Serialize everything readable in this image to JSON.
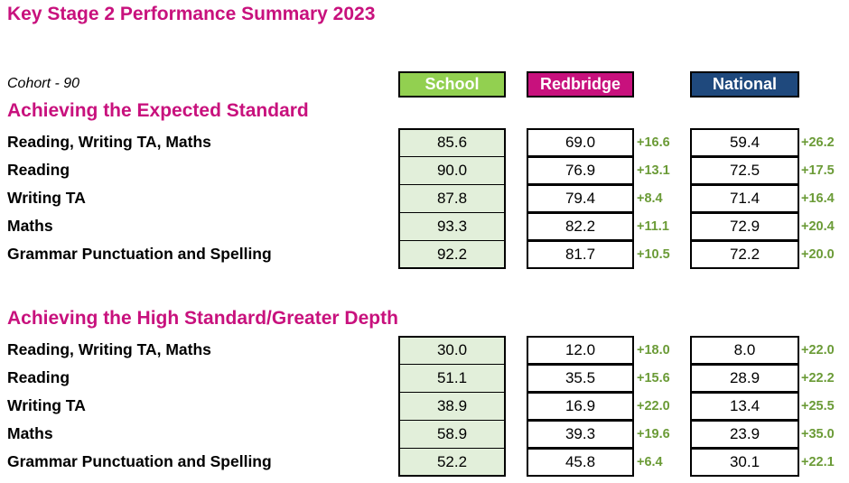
{
  "title": "Key Stage 2 Performance Summary 2023",
  "cohort": "Cohort - 90",
  "headers": {
    "school": "School",
    "redbridge": "Redbridge",
    "national": "National"
  },
  "sections": [
    {
      "title": "Achieving the Expected Standard",
      "rows": [
        {
          "label": "Reading, Writing TA, Maths",
          "school": "85.6",
          "redbridge": "69.0",
          "redbridge_diff": "+16.6",
          "national": "59.4",
          "national_diff": "+26.2"
        },
        {
          "label": "Reading",
          "school": "90.0",
          "redbridge": "76.9",
          "redbridge_diff": "+13.1",
          "national": "72.5",
          "national_diff": "+17.5"
        },
        {
          "label": "Writing TA",
          "school": "87.8",
          "redbridge": "79.4",
          "redbridge_diff": "+8.4",
          "national": "71.4",
          "national_diff": "+16.4"
        },
        {
          "label": "Maths",
          "school": "93.3",
          "redbridge": "82.2",
          "redbridge_diff": "+11.1",
          "national": "72.9",
          "national_diff": "+20.4"
        },
        {
          "label": "Grammar Punctuation and Spelling",
          "school": "92.2",
          "redbridge": "81.7",
          "redbridge_diff": "+10.5",
          "national": "72.2",
          "national_diff": "+20.0"
        }
      ]
    },
    {
      "title": "Achieving the High Standard/Greater Depth",
      "rows": [
        {
          "label": "Reading, Writing TA, Maths",
          "school": "30.0",
          "redbridge": "12.0",
          "redbridge_diff": "+18.0",
          "national": "8.0",
          "national_diff": "+22.0"
        },
        {
          "label": "Reading",
          "school": "51.1",
          "redbridge": "35.5",
          "redbridge_diff": "+15.6",
          "national": "28.9",
          "national_diff": "+22.2"
        },
        {
          "label": "Writing TA",
          "school": "38.9",
          "redbridge": "16.9",
          "redbridge_diff": "+22.0",
          "national": "13.4",
          "national_diff": "+25.5"
        },
        {
          "label": "Maths",
          "school": "58.9",
          "redbridge": "39.3",
          "redbridge_diff": "+19.6",
          "national": "23.9",
          "national_diff": "+35.0"
        },
        {
          "label": "Grammar Punctuation and Spelling",
          "school": "52.2",
          "redbridge": "45.8",
          "redbridge_diff": "+6.4",
          "national": "30.1",
          "national_diff": "+22.1"
        }
      ]
    }
  ]
}
